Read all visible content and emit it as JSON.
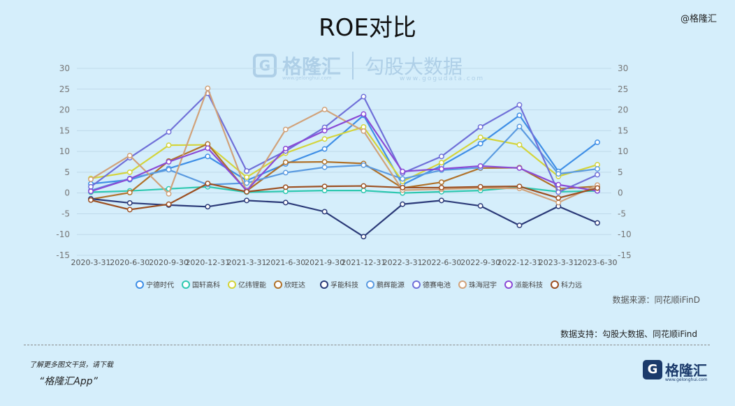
{
  "page": {
    "title": "ROE对比",
    "corner_mark": "@格隆汇",
    "watermark": {
      "logo": "G",
      "name": "格隆汇",
      "sub": "www.gelonghui.com",
      "brand": "勾股大数据",
      "brand_sub": "www.gogudata.com"
    },
    "source_note": "数据来源：同花顺iFinD",
    "support_note": "数据支持：勾股大数据、同花顺iFind",
    "footer_line1": "了解更多图文干货，请下载",
    "footer_line2": "“格隆汇App”",
    "footer_logo": {
      "mark": "G",
      "name": "格隆汇",
      "sub": "www.gelonghui.com"
    }
  },
  "chart_data": {
    "type": "line",
    "title": "ROE对比",
    "categories": [
      "2020-3-31",
      "2020-6-30",
      "2020-9-30",
      "2020-12-31",
      "2021-3-31",
      "2021-6-30",
      "2021-9-30",
      "2021-12-31",
      "2022-3-31",
      "2022-6-30",
      "2022-9-30",
      "2022-12-31",
      "2023-3-31",
      "2023-6-30"
    ],
    "ylim": [
      -15,
      30
    ],
    "yticks": [
      -15,
      -10,
      -5,
      0,
      5,
      10,
      15,
      20,
      25,
      30
    ],
    "grid": true,
    "dual_axis_mirror": true,
    "legend_position": "bottom",
    "series": [
      {
        "name": "宁德时代",
        "color": "#3f8fe6",
        "values": [
          2.2,
          3.2,
          5.9,
          8.8,
          3.0,
          7.0,
          10.6,
          18.7,
          2.0,
          6.6,
          11.9,
          18.7,
          5.2,
          12.2
        ]
      },
      {
        "name": "国轩高科",
        "color": "#2ec8b0",
        "values": [
          0.2,
          0.5,
          1.0,
          1.5,
          0.2,
          0.4,
          0.6,
          0.6,
          0.0,
          0.3,
          0.6,
          1.4,
          0.3,
          0.5
        ]
      },
      {
        "name": "亿纬锂能",
        "color": "#d4d43a",
        "values": [
          3.5,
          5.0,
          11.5,
          11.6,
          3.8,
          9.6,
          13.0,
          15.9,
          2.8,
          7.3,
          13.4,
          11.6,
          4.0,
          6.8
        ]
      },
      {
        "name": "欣旺达",
        "color": "#b0722a",
        "values": [
          -1.5,
          0.1,
          7.7,
          11.8,
          0.5,
          7.4,
          7.5,
          7.1,
          1.2,
          2.6,
          6.0,
          6.1,
          1.0,
          1.6
        ]
      },
      {
        "name": "孚能科技",
        "color": "#2b3a78",
        "values": [
          -1.4,
          -2.4,
          -2.9,
          -3.3,
          -1.8,
          -2.3,
          -4.5,
          -10.5,
          -2.7,
          -1.8,
          -3.1,
          -7.8,
          -3.2,
          -7.2
        ]
      },
      {
        "name": "鹏辉能源",
        "color": "#5b9be0",
        "values": [
          0.6,
          3.5,
          5.6,
          2.0,
          2.4,
          4.9,
          6.2,
          6.7,
          3.4,
          5.5,
          6.1,
          16.0,
          4.6,
          5.8
        ]
      },
      {
        "name": "德赛电池",
        "color": "#7070d8",
        "values": [
          1.5,
          8.5,
          14.7,
          24.0,
          5.3,
          10.1,
          15.8,
          23.2,
          4.8,
          8.8,
          15.9,
          21.2,
          0.2,
          4.4
        ]
      },
      {
        "name": "珠海冠宇",
        "color": "#d1a27a",
        "values": [
          3.3,
          9.0,
          -0.2,
          25.2,
          0.3,
          15.3,
          20.1,
          14.9,
          0.7,
          0.9,
          1.2,
          1.1,
          -2.3,
          1.9
        ]
      },
      {
        "name": "派能科技",
        "color": "#8a4ad6",
        "values": [
          0.4,
          3.4,
          7.5,
          10.8,
          0.6,
          10.7,
          15.0,
          19.0,
          5.2,
          5.8,
          6.5,
          6.0,
          2.0,
          0.5
        ]
      },
      {
        "name": "科力远",
        "color": "#9c5022",
        "values": [
          -1.7,
          -4.0,
          -2.7,
          2.3,
          0.3,
          1.4,
          1.6,
          1.7,
          1.3,
          1.3,
          1.5,
          1.6,
          -1.2,
          1.2
        ]
      }
    ]
  }
}
